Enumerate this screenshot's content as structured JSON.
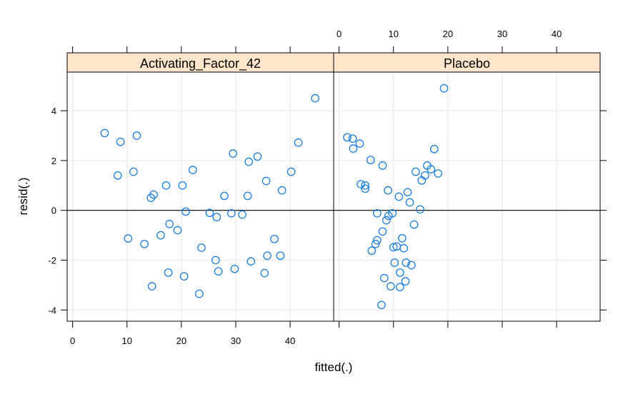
{
  "chart_data": {
    "type": "scatter",
    "xlabel": "fitted(.)",
    "ylabel": "resid(.)",
    "xlim": [
      -1,
      48
    ],
    "ylim": [
      -4.45,
      5.55
    ],
    "x_ticks": [
      0,
      10,
      20,
      30,
      40
    ],
    "y_ticks": [
      -4,
      -2,
      0,
      2,
      4
    ],
    "x_tick_labels": [
      "0",
      "10",
      "20",
      "30",
      "40"
    ],
    "y_tick_labels": [
      "-4",
      "-2",
      "0",
      "2",
      "4"
    ],
    "grid": true,
    "reference_line_y": 0,
    "colors": {
      "point": "#1a7de0",
      "strip_bg": "#ffe5cc",
      "grid": "#e6e6e6"
    },
    "panels": [
      {
        "name": "Activating_Factor_42",
        "points": [
          {
            "x": 5.9,
            "y": 3.1
          },
          {
            "x": 8.8,
            "y": 2.75
          },
          {
            "x": 11.8,
            "y": 3.0
          },
          {
            "x": 8.3,
            "y": 1.4
          },
          {
            "x": 11.2,
            "y": 1.55
          },
          {
            "x": 14.4,
            "y": 0.5
          },
          {
            "x": 14.9,
            "y": 0.63
          },
          {
            "x": 17.2,
            "y": 1.0
          },
          {
            "x": 20.2,
            "y": 1.0
          },
          {
            "x": 22.1,
            "y": 1.62
          },
          {
            "x": 10.2,
            "y": -1.13
          },
          {
            "x": 13.2,
            "y": -1.35
          },
          {
            "x": 16.2,
            "y": -1.0
          },
          {
            "x": 17.8,
            "y": -0.55
          },
          {
            "x": 19.3,
            "y": -0.8
          },
          {
            "x": 20.8,
            "y": -0.05
          },
          {
            "x": 14.6,
            "y": -3.05
          },
          {
            "x": 17.6,
            "y": -2.5
          },
          {
            "x": 20.5,
            "y": -2.65
          },
          {
            "x": 23.3,
            "y": -3.35
          },
          {
            "x": 23.7,
            "y": -1.5
          },
          {
            "x": 25.2,
            "y": -0.1
          },
          {
            "x": 26.5,
            "y": -0.27
          },
          {
            "x": 27.9,
            "y": 0.58
          },
          {
            "x": 26.3,
            "y": -2.0
          },
          {
            "x": 26.8,
            "y": -2.45
          },
          {
            "x": 29.2,
            "y": -0.12
          },
          {
            "x": 29.5,
            "y": 2.28
          },
          {
            "x": 29.8,
            "y": -2.35
          },
          {
            "x": 31.2,
            "y": -0.17
          },
          {
            "x": 32.2,
            "y": 0.58
          },
          {
            "x": 32.4,
            "y": 1.95
          },
          {
            "x": 32.8,
            "y": -2.05
          },
          {
            "x": 34.0,
            "y": 2.16
          },
          {
            "x": 35.3,
            "y": -2.52
          },
          {
            "x": 35.6,
            "y": 1.18
          },
          {
            "x": 35.8,
            "y": -1.82
          },
          {
            "x": 37.1,
            "y": -1.15
          },
          {
            "x": 38.2,
            "y": -1.82
          },
          {
            "x": 38.5,
            "y": 0.8
          },
          {
            "x": 40.2,
            "y": 1.55
          },
          {
            "x": 41.5,
            "y": 2.72
          },
          {
            "x": 44.6,
            "y": 4.5
          }
        ]
      },
      {
        "name": "Placebo",
        "points": [
          {
            "x": 1.5,
            "y": 2.93
          },
          {
            "x": 2.5,
            "y": 2.88
          },
          {
            "x": 2.6,
            "y": 2.48
          },
          {
            "x": 3.8,
            "y": 2.68
          },
          {
            "x": 4.0,
            "y": 1.05
          },
          {
            "x": 4.8,
            "y": 1.0
          },
          {
            "x": 4.8,
            "y": 0.87
          },
          {
            "x": 5.8,
            "y": 2.02
          },
          {
            "x": 6.0,
            "y": -1.62
          },
          {
            "x": 6.7,
            "y": -1.35
          },
          {
            "x": 7.0,
            "y": -1.2
          },
          {
            "x": 7.0,
            "y": -0.12
          },
          {
            "x": 7.8,
            "y": -3.8
          },
          {
            "x": 8.0,
            "y": 1.8
          },
          {
            "x": 8.0,
            "y": -0.85
          },
          {
            "x": 8.3,
            "y": -2.72
          },
          {
            "x": 8.7,
            "y": -0.4
          },
          {
            "x": 9.0,
            "y": 0.8
          },
          {
            "x": 9.1,
            "y": -0.22
          },
          {
            "x": 9.5,
            "y": -3.05
          },
          {
            "x": 9.8,
            "y": -0.12
          },
          {
            "x": 10.0,
            "y": -1.48
          },
          {
            "x": 10.2,
            "y": -2.1
          },
          {
            "x": 10.6,
            "y": -1.45
          },
          {
            "x": 11.0,
            "y": 0.55
          },
          {
            "x": 11.2,
            "y": -3.08
          },
          {
            "x": 11.2,
            "y": -2.5
          },
          {
            "x": 11.6,
            "y": -1.12
          },
          {
            "x": 11.9,
            "y": -1.52
          },
          {
            "x": 12.2,
            "y": -2.85
          },
          {
            "x": 12.3,
            "y": -2.1
          },
          {
            "x": 12.6,
            "y": 0.73
          },
          {
            "x": 13.0,
            "y": 0.32
          },
          {
            "x": 13.3,
            "y": -2.2
          },
          {
            "x": 13.8,
            "y": -0.57
          },
          {
            "x": 14.1,
            "y": 1.55
          },
          {
            "x": 14.9,
            "y": 0.04
          },
          {
            "x": 15.2,
            "y": 1.2
          },
          {
            "x": 15.8,
            "y": 1.4
          },
          {
            "x": 16.2,
            "y": 1.8
          },
          {
            "x": 16.9,
            "y": 1.65
          },
          {
            "x": 17.5,
            "y": 2.46
          },
          {
            "x": 18.2,
            "y": 1.48
          },
          {
            "x": 19.3,
            "y": 4.9
          }
        ]
      }
    ]
  }
}
